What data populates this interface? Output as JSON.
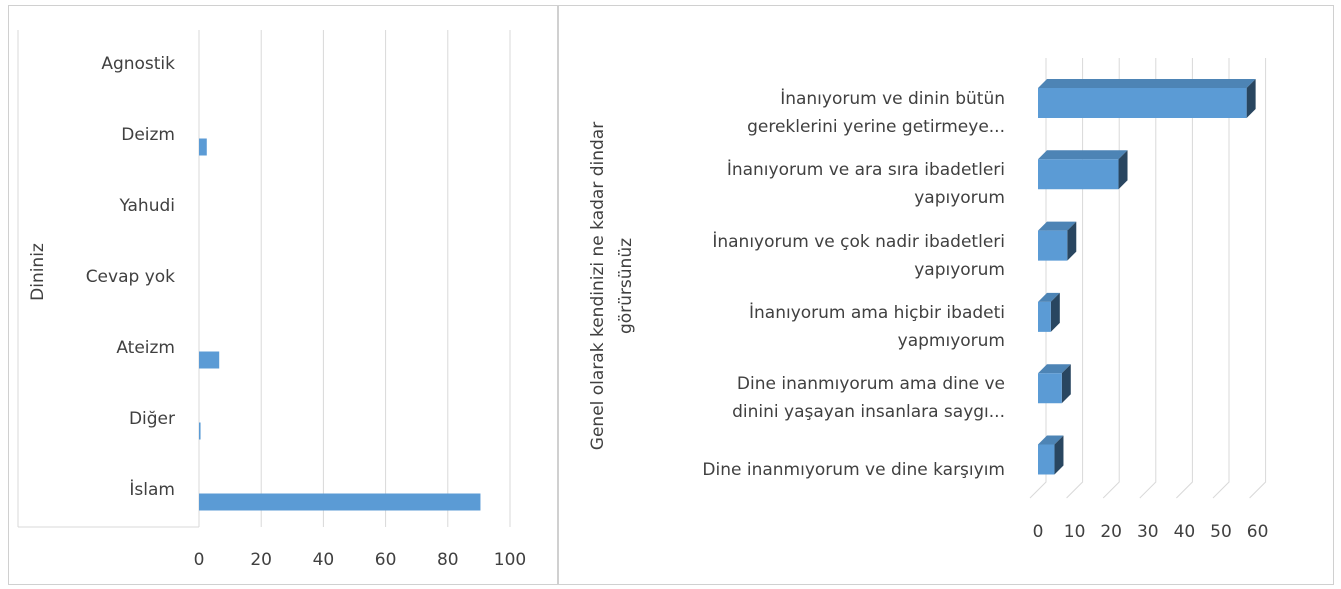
{
  "chart_data": [
    {
      "type": "bar",
      "orientation": "horizontal",
      "ylabel": "Dininiz",
      "categories": [
        "Agnostik",
        "Deizm",
        "Yahudi",
        "Cevap yok",
        "Ateizm",
        "Diğer",
        "İslam"
      ],
      "values": [
        0,
        2.5,
        0,
        0,
        6.5,
        0.5,
        90.5
      ],
      "color": "#5b9bd5",
      "xlim": [
        0,
        100
      ],
      "xticks": [
        0,
        20,
        40,
        60,
        80,
        100
      ],
      "grid": true
    },
    {
      "type": "bar3d",
      "orientation": "horizontal",
      "ylabel": "Genel olarak kendinizi ne kadar dindar\ngörürsünüz",
      "categories": [
        "İnanıyorum ve dinin bütün\ngereklerini yerine getirmeye...",
        "İnanıyorum ve ara sıra ibadetleri\nyapıyorum",
        "İnanıyorum ve çok nadir ibadetleri\nyapıyorum",
        "İnanıyorum ama hiçbir ibadeti\nyapmıyorum",
        "Dine inanmıyorum ama dine ve\ndinini yaşayan insanlara saygı...",
        "Dine inanmıyorum ve dine karşıyım"
      ],
      "values": [
        57,
        22,
        8,
        3.5,
        6.5,
        4.5
      ],
      "color": "#5b9bd5",
      "xlim": [
        0,
        60
      ],
      "xticks": [
        0,
        10,
        20,
        30,
        40,
        50,
        60
      ],
      "grid": true
    }
  ]
}
